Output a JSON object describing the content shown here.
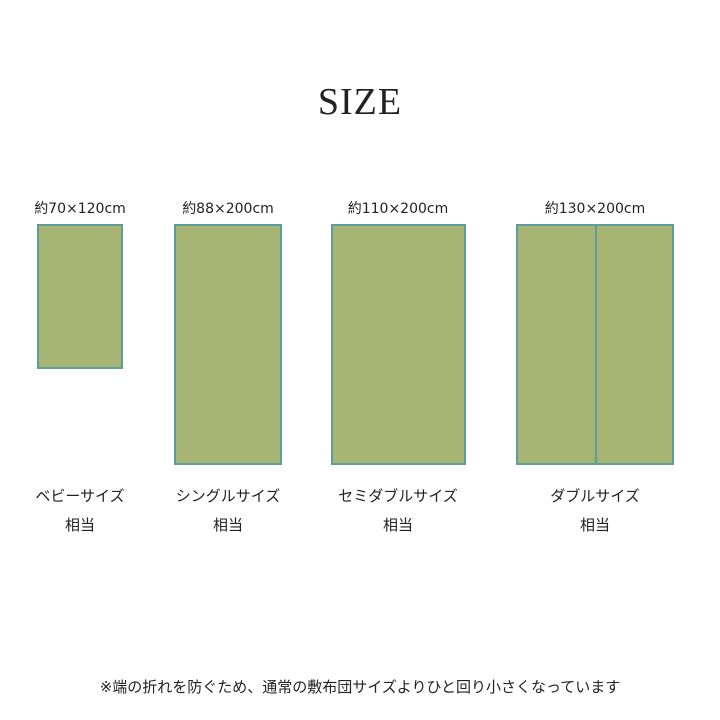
{
  "title": "SIZE",
  "colors": {
    "mat_fill": "#a6b574",
    "mat_border": "#5f9c9c"
  },
  "sizes": [
    {
      "dimension": "約70×120cm",
      "name": "ベビーサイズ",
      "equivalent": "相当"
    },
    {
      "dimension": "約88×200cm",
      "name": "シングルサイズ",
      "equivalent": "相当"
    },
    {
      "dimension": "約110×200cm",
      "name": "セミダブルサイズ",
      "equivalent": "相当"
    },
    {
      "dimension": "約130×200cm",
      "name": "ダブルサイズ",
      "equivalent": "相当"
    }
  ],
  "note": "※端の折れを防ぐため、通常の敷布団サイズよりひと回り小さくなっています"
}
